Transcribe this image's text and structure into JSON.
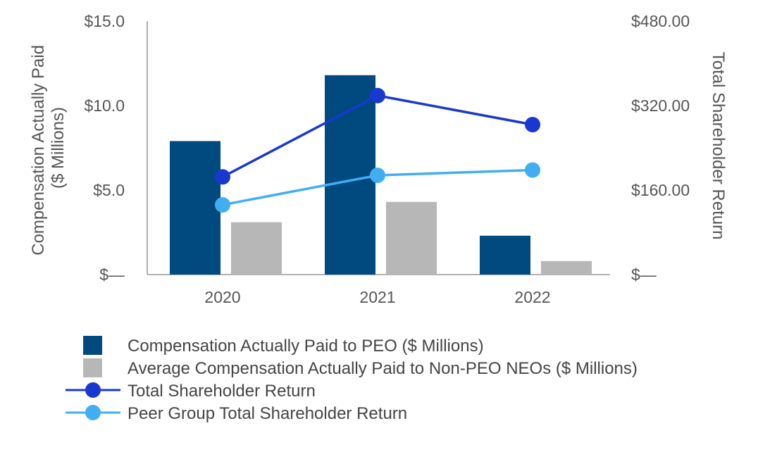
{
  "chart_data": {
    "type": "bar",
    "categories": [
      "2020",
      "2021",
      "2022"
    ],
    "series": [
      {
        "name": "Compensation Actually Paid to PEO ($ Millions)",
        "kind": "bar",
        "axis": "left",
        "color": "#004a7f",
        "values": [
          7.9,
          11.8,
          2.3
        ]
      },
      {
        "name": "Average Compensation Actually Paid to Non-PEO NEOs ($ Millions)",
        "kind": "bar",
        "axis": "left",
        "color": "#b7b7b7",
        "values": [
          3.1,
          4.3,
          0.8
        ]
      },
      {
        "name": "Total Shareholder Return",
        "kind": "line",
        "axis": "right",
        "color": "#1838d0",
        "values": [
          185,
          339,
          284
        ]
      },
      {
        "name": "Peer Group Total Shareholder Return",
        "kind": "line",
        "axis": "right",
        "color": "#42aef2",
        "values": [
          132,
          188,
          198
        ]
      }
    ],
    "y_left": {
      "label_lines": [
        "Compensation Actually Paid",
        "($ Millions)"
      ],
      "ylim": [
        0,
        15
      ],
      "ticks": [
        0,
        5,
        10,
        15
      ],
      "tick_labels": [
        "$—",
        "$5.0",
        "$10.0",
        "$15.0"
      ]
    },
    "y_right": {
      "label": "Total Shareholder Return",
      "ylim": [
        0,
        480
      ],
      "ticks": [
        0,
        160,
        320,
        480
      ],
      "tick_labels": [
        "$—",
        "$160.00",
        "$320.00",
        "$480.00"
      ]
    },
    "legend_position": "bottom-left",
    "grid": false
  }
}
